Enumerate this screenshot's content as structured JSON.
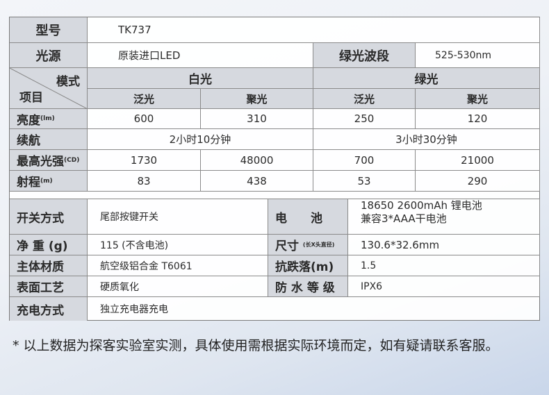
{
  "model": {
    "label": "型号",
    "value": "TK737"
  },
  "light_source": {
    "label": "光源",
    "value": "原装进口LED",
    "green_band_label": "绿光波段",
    "green_band_value": "525-530nm"
  },
  "header": {
    "mode": "模式",
    "item": "项目",
    "white": "白光",
    "green": "绿光",
    "flood": "泛光",
    "spot": "聚光"
  },
  "rows": [
    {
      "label": "亮度",
      "unit": "(lm)",
      "values": [
        "600",
        "310",
        "250",
        "120"
      ]
    },
    {
      "label": "续航",
      "unit": "",
      "values": [
        "2小时10分钟",
        "3小时30分钟"
      ]
    },
    {
      "label": "最高光强",
      "unit": "(CD)",
      "values": [
        "1730",
        "48000",
        "700",
        "21000"
      ]
    },
    {
      "label": "射程",
      "unit": "(m)",
      "values": [
        "83",
        "438",
        "53",
        "290"
      ]
    }
  ],
  "specs": {
    "switch": {
      "label": "开关方式",
      "value": "尾部按键开关"
    },
    "battery": {
      "label": "电　　池",
      "value1": "18650 2600mAh 锂电池",
      "value2": "兼容3*AAA干电池"
    },
    "weight": {
      "label": "净 重 (g)",
      "value": "115 (不含电池)"
    },
    "size": {
      "label": "尺寸",
      "unit": "(长X头直径)",
      "value": "130.6*32.6mm"
    },
    "material": {
      "label": "主体材质",
      "value": "航空级铝合金 T6061"
    },
    "drop": {
      "label": "抗跌落(m)",
      "value": "1.5"
    },
    "surface": {
      "label": "表面工艺",
      "value": "硬质氧化"
    },
    "waterproof": {
      "label": "防 水 等 级",
      "value": "IPX6"
    },
    "charging": {
      "label": "充电方式",
      "value": "独立充电器充电"
    }
  },
  "note": "* 以上数据为探客实验室实测，具体使用需根据实际环境而定，如有疑请联系客服。"
}
